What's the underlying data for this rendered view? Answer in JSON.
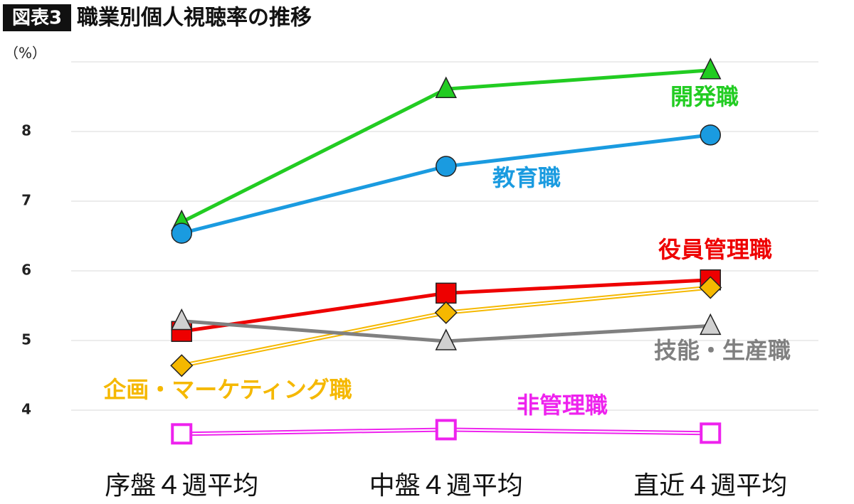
{
  "chart_data": {
    "type": "line",
    "badge": "図表3",
    "title": "職業別個人視聴率の推移",
    "y_unit": "（%）",
    "categories": [
      "序盤４週平均",
      "中盤４週平均",
      "直近４週平均"
    ],
    "ylim": [
      3.2,
      9
    ],
    "yticks": [
      4,
      5,
      6,
      7,
      8
    ],
    "grid": true,
    "series": [
      {
        "name": "開発職",
        "color": "#22cc22",
        "marker": "triangle",
        "values": [
          6.7,
          8.61,
          8.88
        ]
      },
      {
        "name": "教育職",
        "color": "#1a9be0",
        "marker": "circle",
        "values": [
          6.54,
          7.5,
          7.95
        ]
      },
      {
        "name": "役員管理職",
        "color": "#ee0000",
        "marker": "square",
        "values": [
          5.13,
          5.68,
          5.87
        ]
      },
      {
        "name": "企画・マーケティング職",
        "color": "#f5b800",
        "marker": "diamond",
        "line": "double",
        "values": [
          4.64,
          5.4,
          5.76
        ]
      },
      {
        "name": "技能・生産職",
        "color": "#808080",
        "marker": "triangle-light",
        "values": [
          5.28,
          4.99,
          5.21
        ]
      },
      {
        "name": "非管理職",
        "color": "#ee22ee",
        "marker": "square-open",
        "line": "double",
        "values": [
          3.66,
          3.72,
          3.67
        ]
      }
    ]
  }
}
